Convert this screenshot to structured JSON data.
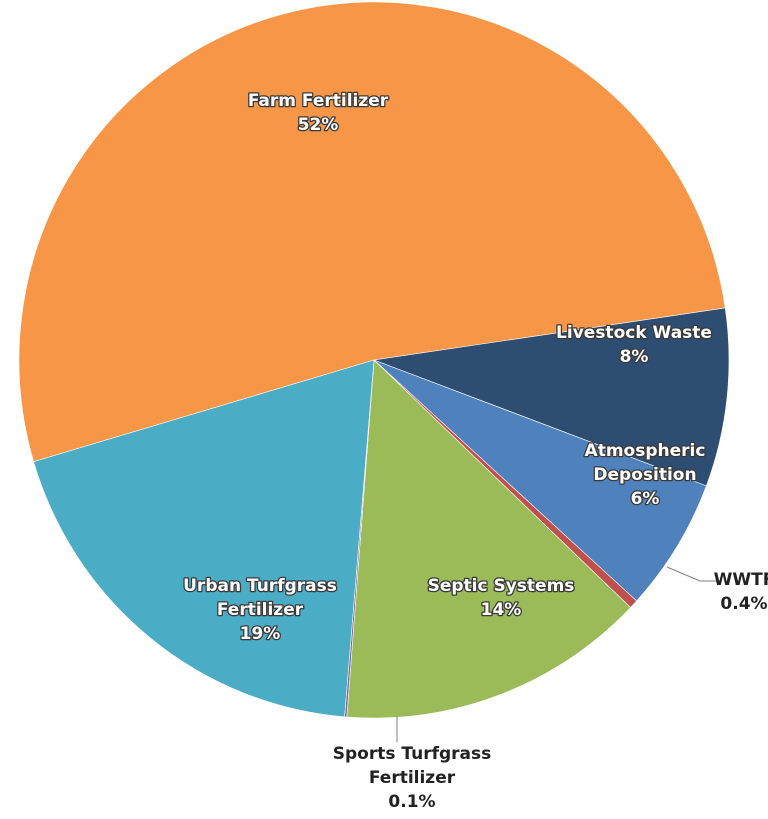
{
  "chart_data": {
    "type": "pie",
    "title": "",
    "slices": [
      {
        "name": "Farm Fertilizer",
        "value": 52,
        "display": "52%",
        "color": "#f79646"
      },
      {
        "name": "Livestock Waste",
        "value": 8,
        "display": "8%",
        "color": "#2e4d73"
      },
      {
        "name": "Atmospheric Deposition",
        "value": 6,
        "display": "6%",
        "color": "#4f81bd"
      },
      {
        "name": "WWTF",
        "value": 0.4,
        "display": "0.4%",
        "color": "#c0504d"
      },
      {
        "name": "Septic Systems",
        "value": 14,
        "display": "14%",
        "color": "#9bbb59"
      },
      {
        "name": "Sports Turfgrass Fertilizer",
        "value": 0.1,
        "display": "0.1%",
        "color": "#8064a2"
      },
      {
        "name": "Urban Turfgrass Fertilizer",
        "value": 19,
        "display": "19%",
        "color": "#4bacc6"
      }
    ]
  }
}
